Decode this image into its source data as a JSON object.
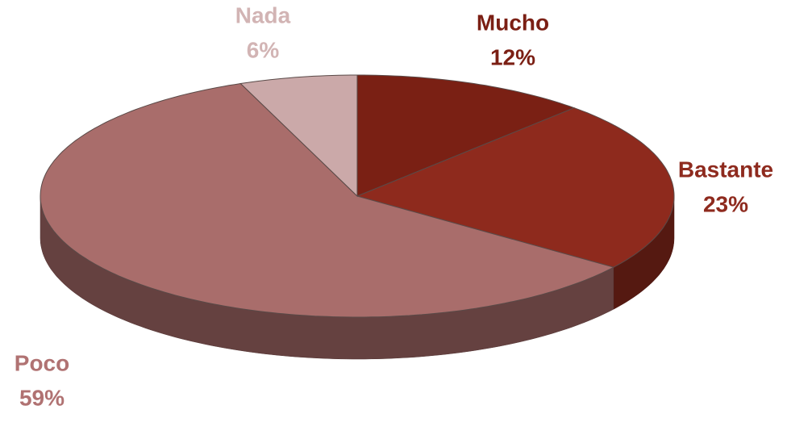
{
  "chart_data": {
    "type": "pie",
    "categories": [
      "Mucho",
      "Bastante",
      "Poco",
      "Nada"
    ],
    "values": [
      12,
      23,
      59,
      6
    ],
    "value_labels": [
      "12%",
      "23%",
      "59%",
      "6%"
    ],
    "colors": [
      "#7a2014",
      "#8e2a1d",
      "#a96d6b",
      "#cba9a9"
    ],
    "label_colors": [
      "#7b1f14",
      "#8e2a1e",
      "#b07272",
      "#d2b4b4"
    ]
  }
}
